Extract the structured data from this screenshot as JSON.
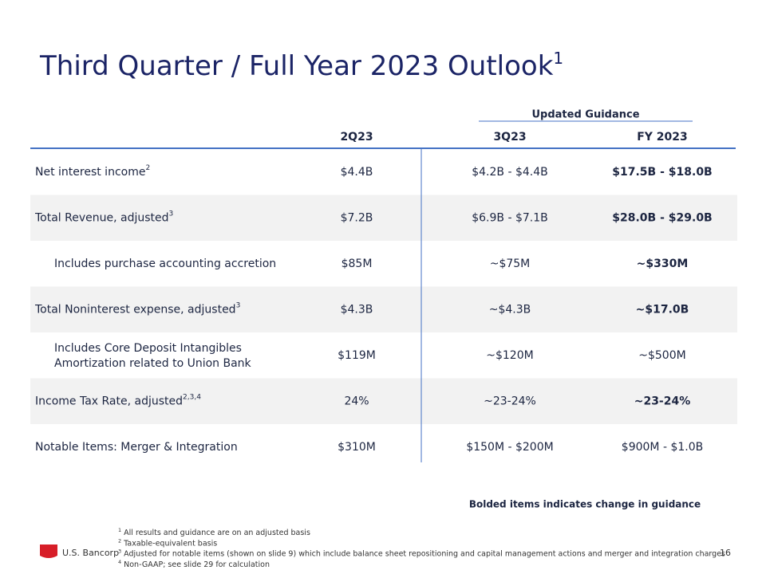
{
  "header": {
    "title": "Third Quarter / Full Year 2023 Outlook",
    "title_note": "1"
  },
  "table": {
    "group_header": "Updated Guidance",
    "columns": [
      "2Q23",
      "3Q23",
      "FY 2023"
    ],
    "rows": [
      {
        "label": "Net interest income",
        "note": "2",
        "indent": false,
        "values": [
          "$4.4B",
          "$4.2B - $4.4B",
          "$17.5B - $18.0B"
        ],
        "bold": true
      },
      {
        "label": "Total Revenue, adjusted",
        "note": "3",
        "indent": false,
        "values": [
          "$7.2B",
          "$6.9B - $7.1B",
          "$28.0B - $29.0B"
        ],
        "bold": true
      },
      {
        "label": "Includes purchase accounting accretion",
        "indent": true,
        "values": [
          "$85M",
          "~$75M",
          "~$330M"
        ],
        "bold": true
      },
      {
        "label": "Total Noninterest expense, adjusted",
        "note": "3",
        "indent": false,
        "values": [
          "$4.3B",
          "~$4.3B",
          "~$17.0B"
        ],
        "bold": true
      },
      {
        "label": "Includes Core Deposit Intangibles",
        "label2": "Amortization related to Union Bank",
        "indent": true,
        "values": [
          "$119M",
          "~$120M",
          "~$500M"
        ],
        "bold": false
      },
      {
        "label": "Income Tax Rate, adjusted",
        "note": "2,3,4",
        "indent": false,
        "values": [
          "24%",
          "~23-24%",
          "~23-24%"
        ],
        "bold": true
      },
      {
        "label": "Notable Items: Merger & Integration",
        "indent": false,
        "values": [
          "$310M",
          "$150M - $200M",
          "$900M - $1.0B"
        ],
        "bold": false
      }
    ]
  },
  "bold_note": "Bolded items indicates change in guidance",
  "footnotes": [
    {
      "number": "1",
      "text": "All results and guidance are on an adjusted basis"
    },
    {
      "number": "2",
      "text": "Taxable-equivalent basis"
    },
    {
      "number": "3",
      "text": "Adjusted for notable items (shown on slide 9) which include balance sheet repositioning and capital management actions and merger and integration charges"
    },
    {
      "number": "4",
      "text": "Non-GAAP; see slide 29 for calculation"
    }
  ],
  "logo": "U.S. Bancorp",
  "page_number": "16"
}
